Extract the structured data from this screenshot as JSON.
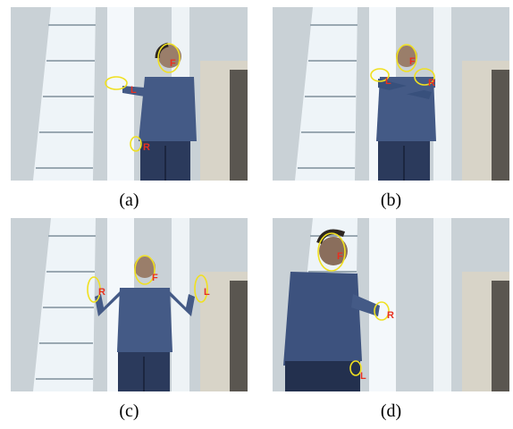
{
  "figure": {
    "panels": [
      {
        "id": "a",
        "caption": "(a)",
        "labels": {
          "face": "F",
          "hand1": "L",
          "hand2": "R"
        }
      },
      {
        "id": "b",
        "caption": "(b)",
        "labels": {
          "face": "F",
          "hand1": "L",
          "hand2": "R"
        }
      },
      {
        "id": "c",
        "caption": "(c)",
        "labels": {
          "face": "F",
          "hand1": "R",
          "hand2": "L"
        }
      },
      {
        "id": "d",
        "caption": "(d)",
        "labels": {
          "face": "F",
          "hand1": "R",
          "hand2": "L"
        }
      }
    ]
  },
  "colors": {
    "contour": "#f0e020",
    "label": "#e83020",
    "wall": "#c9d1d6",
    "window": "#eef4f8",
    "shirt": "#445a86",
    "jeans": "#2b3a5c",
    "shelf": "#d8d4c8"
  }
}
